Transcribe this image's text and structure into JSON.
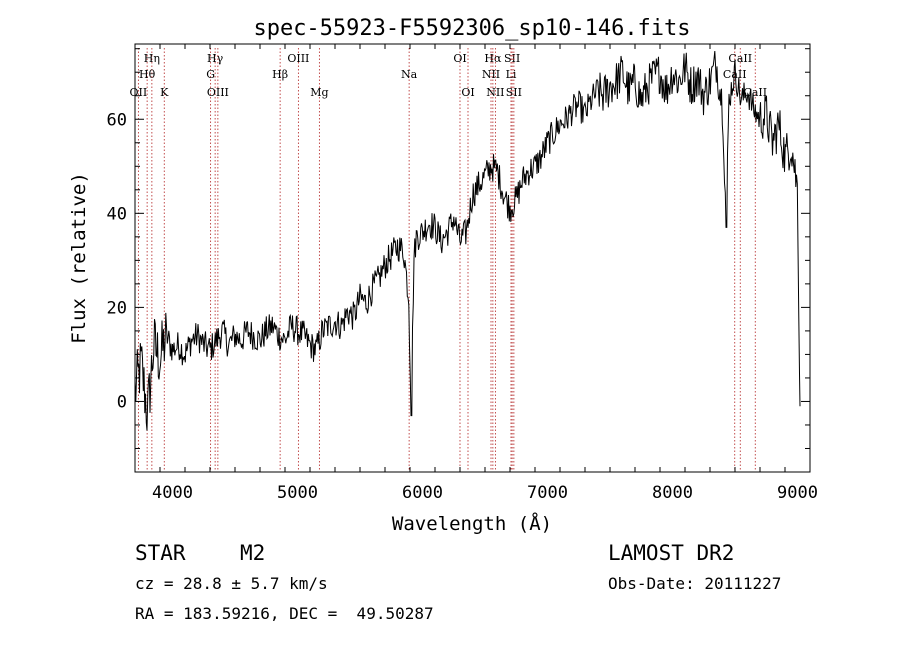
{
  "chart_data": {
    "type": "line",
    "title": "spec-55923-F5592306_sp10-146.fits",
    "xlabel": "Wavelength (Å)",
    "ylabel": "Flux (relative)",
    "xlim": [
      3700,
      9100
    ],
    "ylim": [
      -15,
      76
    ],
    "x_ticks": [
      4000,
      5000,
      6000,
      7000,
      8000,
      9000
    ],
    "y_ticks": [
      0,
      20,
      40,
      60
    ],
    "grid": false,
    "series": [
      {
        "x": [
          3700,
          3750,
          3800,
          3850,
          3900,
          3950,
          4000,
          4050,
          4100,
          4150,
          4200,
          4250,
          4300,
          4350,
          4400,
          4450,
          4500,
          4550,
          4600,
          4650,
          4700,
          4750,
          4800,
          4850,
          4900,
          4950,
          5000,
          5050,
          5100,
          5150,
          5200,
          5250,
          5300,
          5350,
          5400,
          5450,
          5500,
          5550,
          5600,
          5650,
          5700,
          5750,
          5800,
          5850,
          5890,
          5910,
          5930,
          5950,
          6000,
          6050,
          6100,
          6150,
          6200,
          6250,
          6300,
          6350,
          6400,
          6450,
          6500,
          6550,
          6600,
          6650,
          6700,
          6750,
          6800,
          6850,
          6900,
          6950,
          7000,
          7050,
          7100,
          7150,
          7200,
          7250,
          7300,
          7350,
          7400,
          7450,
          7500,
          7550,
          7600,
          7650,
          7700,
          7750,
          7800,
          7850,
          7900,
          7950,
          8000,
          8050,
          8100,
          8150,
          8200,
          8250,
          8300,
          8350,
          8400,
          8430,
          8450,
          8500,
          8550,
          8600,
          8650,
          8700,
          8750,
          8800,
          8850,
          8900,
          8950,
          9000,
          9020
        ],
        "y": [
          2,
          8,
          -3,
          12,
          9,
          14,
          11,
          12,
          10,
          13,
          14,
          12,
          11,
          13,
          15,
          12,
          14,
          13,
          15,
          14,
          13,
          15,
          16,
          14,
          13,
          16,
          15,
          14,
          12,
          11,
          15,
          16,
          17,
          16,
          19,
          18,
          22,
          21,
          24,
          26,
          29,
          31,
          33,
          32,
          22,
          -3,
          30,
          35,
          36,
          38,
          37,
          34,
          36,
          39,
          34,
          36,
          44,
          46,
          48,
          50,
          49,
          44,
          41,
          43,
          47,
          49,
          50,
          52,
          55,
          57,
          59,
          60,
          62,
          63,
          61,
          64,
          66,
          65,
          67,
          68,
          70,
          66,
          68,
          64,
          67,
          69,
          70,
          66,
          70,
          68,
          71,
          67,
          69,
          65,
          68,
          72,
          63,
          37,
          64,
          70,
          64,
          66,
          62,
          60,
          61,
          55,
          59,
          52,
          55,
          45,
          -1
        ]
      }
    ],
    "line_markers": [
      {
        "label": "OII",
        "x": 3727,
        "row": 3
      },
      {
        "label": "Hη",
        "x": 3835,
        "row": 1
      },
      {
        "label": "Hθ",
        "x": 3797,
        "row": 2
      },
      {
        "label": "K",
        "x": 3934,
        "row": 3
      },
      {
        "label": "Hγ",
        "x": 4341,
        "row": 1
      },
      {
        "label": "G",
        "x": 4305,
        "row": 2
      },
      {
        "label": "OIII",
        "x": 4363,
        "row": 3
      },
      {
        "label": "OIII",
        "x": 5007,
        "row": 1
      },
      {
        "label": "Hβ",
        "x": 4861,
        "row": 2
      },
      {
        "label": "Mg",
        "x": 5175,
        "row": 3
      },
      {
        "label": "Na",
        "x": 5893,
        "row": 2
      },
      {
        "label": "OI",
        "x": 6300,
        "row": 1
      },
      {
        "label": "OI",
        "x": 6364,
        "row": 3
      },
      {
        "label": "Hα",
        "x": 6563,
        "row": 1
      },
      {
        "label": "SII",
        "x": 6717,
        "row": 1
      },
      {
        "label": "NII",
        "x": 6548,
        "row": 2
      },
      {
        "label": "Li",
        "x": 6708,
        "row": 2
      },
      {
        "label": "NII",
        "x": 6583,
        "row": 3
      },
      {
        "label": "SII",
        "x": 6731,
        "row": 3
      },
      {
        "label": "CaII",
        "x": 8542,
        "row": 1
      },
      {
        "label": "CaII",
        "x": 8498,
        "row": 2
      },
      {
        "label": "CaII",
        "x": 8662,
        "row": 3
      }
    ]
  },
  "info": {
    "object_class": "STAR",
    "subclass": "M2",
    "survey": "LAMOST DR2",
    "redshift": "cz = 28.8 ± 5.7 km/s",
    "obs_date": "Obs-Date: 20111227",
    "coords": "RA = 183.59216, DEC =  49.50287"
  }
}
